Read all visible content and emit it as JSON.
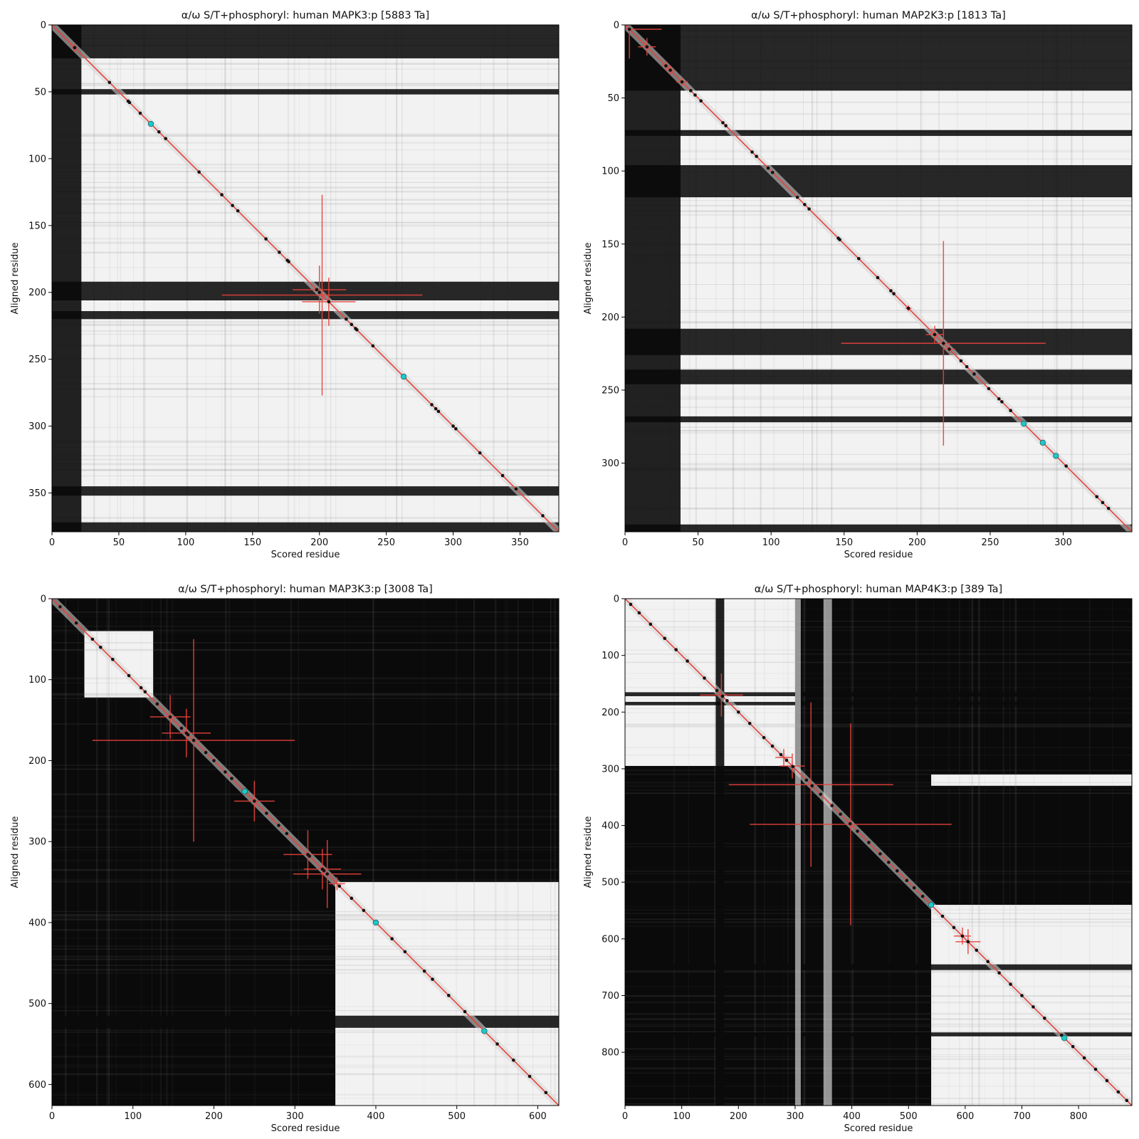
{
  "figure": {
    "background": "#ffffff"
  },
  "colors": {
    "diagonal": "#e8413a",
    "errorbar": "#e8413a",
    "marker": "#111111",
    "highlight": "#1ec8c8",
    "heat_dark": "#0a0a0a",
    "heat_light": "#f2f2f2"
  },
  "chart_data": [
    {
      "type": "heatmap",
      "title": "α/ω S/T+phosphoryl: human MAPK3:p [5883 Ta]",
      "xlabel": "Scored residue",
      "ylabel": "Aligned residue",
      "n": 379,
      "xlim": [
        0,
        379
      ],
      "ylim": [
        379,
        0
      ],
      "xticks": [
        0,
        50,
        100,
        150,
        200,
        250,
        300,
        350
      ],
      "yticks": [
        0,
        50,
        100,
        150,
        200,
        250,
        300,
        350
      ],
      "dark_rows": [
        [
          0,
          25
        ],
        [
          48,
          52
        ],
        [
          192,
          206
        ],
        [
          214,
          220
        ],
        [
          345,
          352
        ],
        [
          372,
          379
        ]
      ],
      "dark_cols": [
        [
          0,
          22
        ]
      ],
      "light_cols": [],
      "light_blocks": [],
      "markers": [
        17,
        43,
        57,
        58,
        66,
        74,
        80,
        85,
        110,
        127,
        135,
        139,
        160,
        170,
        176,
        177,
        198,
        200,
        207,
        220,
        224,
        227,
        228,
        240,
        263,
        284,
        287,
        289,
        300,
        302,
        320,
        337,
        347,
        367
      ],
      "highlights": [
        74,
        263
      ],
      "errorbars": [
        {
          "x": 17,
          "y": 17,
          "xerr": 2,
          "yerr": 3
        },
        {
          "x": 202,
          "y": 202,
          "xerr": 75,
          "yerr": 75
        },
        {
          "x": 200,
          "y": 198,
          "xerr": 20,
          "yerr": 18
        },
        {
          "x": 207,
          "y": 207,
          "xerr": 20,
          "yerr": 18
        }
      ]
    },
    {
      "type": "heatmap",
      "title": "α/ω S/T+phosphoryl: human MAP2K3:p [1813 Ta]",
      "xlabel": "Scored residue",
      "ylabel": "Aligned residue",
      "n": 347,
      "xlim": [
        0,
        347
      ],
      "ylim": [
        347,
        0
      ],
      "xticks": [
        0,
        50,
        100,
        150,
        200,
        250,
        300
      ],
      "yticks": [
        0,
        50,
        100,
        150,
        200,
        250,
        300
      ],
      "dark_rows": [
        [
          0,
          45
        ],
        [
          72,
          76
        ],
        [
          96,
          118
        ],
        [
          208,
          226
        ],
        [
          236,
          246
        ],
        [
          268,
          272
        ],
        [
          342,
          347
        ]
      ],
      "dark_cols": [
        [
          0,
          38
        ]
      ],
      "light_cols": [],
      "light_blocks": [],
      "markers": [
        3,
        15,
        28,
        31,
        39,
        45,
        48,
        52,
        67,
        69,
        87,
        90,
        98,
        101,
        118,
        123,
        126,
        146,
        147,
        160,
        173,
        182,
        184,
        194,
        212,
        218,
        222,
        230,
        234,
        239,
        249,
        256,
        258,
        264,
        273,
        286,
        295,
        302,
        323,
        327,
        331
      ],
      "highlights": [
        273,
        286,
        295
      ],
      "errorbars": [
        {
          "x": 3,
          "y": 3,
          "xerr": 22,
          "yerr": 20
        },
        {
          "x": 15,
          "y": 15,
          "xerr": 6,
          "yerr": 6
        },
        {
          "x": 28,
          "y": 28,
          "xerr": 3,
          "yerr": 3
        },
        {
          "x": 31,
          "y": 31,
          "xerr": 3,
          "yerr": 3
        },
        {
          "x": 39,
          "y": 39,
          "xerr": 4,
          "yerr": 3
        },
        {
          "x": 194,
          "y": 194,
          "xerr": 2,
          "yerr": 2
        },
        {
          "x": 212,
          "y": 212,
          "xerr": 6,
          "yerr": 6
        },
        {
          "x": 218,
          "y": 218,
          "xerr": 70,
          "yerr": 70
        },
        {
          "x": 222,
          "y": 222,
          "xerr": 4,
          "yerr": 4
        }
      ]
    },
    {
      "type": "heatmap",
      "title": "α/ω S/T+phosphoryl: human MAP3K3:p [3008 Ta]",
      "xlabel": "Scored residue",
      "ylabel": "Aligned residue",
      "n": 626,
      "xlim": [
        0,
        626
      ],
      "ylim": [
        626,
        0
      ],
      "xticks": [
        0,
        100,
        200,
        300,
        400,
        500,
        600
      ],
      "yticks": [
        0,
        100,
        200,
        300,
        400,
        500,
        600
      ],
      "dark_rows": [
        [
          515,
          530
        ]
      ],
      "dark_cols": [],
      "light_cols": [],
      "light_blocks": [
        [
          40,
          122,
          40,
          125
        ],
        [
          350,
          626,
          350,
          626
        ]
      ],
      "markers": [
        10,
        30,
        50,
        60,
        75,
        95,
        110,
        115,
        130,
        146,
        160,
        166,
        168,
        175,
        190,
        200,
        214,
        222,
        238,
        250,
        265,
        280,
        290,
        316,
        318,
        334,
        336,
        340,
        355,
        370,
        385,
        400,
        420,
        436,
        460,
        470,
        490,
        510,
        534,
        550,
        570,
        590,
        610
      ],
      "highlights": [
        238,
        400,
        534
      ],
      "errorbars": [
        {
          "x": 146,
          "y": 146,
          "xerr": 25,
          "yerr": 27
        },
        {
          "x": 166,
          "y": 166,
          "xerr": 30,
          "yerr": 30
        },
        {
          "x": 175,
          "y": 175,
          "xerr": 125,
          "yerr": 125
        },
        {
          "x": 250,
          "y": 250,
          "xerr": 25,
          "yerr": 25
        },
        {
          "x": 316,
          "y": 316,
          "xerr": 30,
          "yerr": 30
        },
        {
          "x": 334,
          "y": 334,
          "xerr": 23,
          "yerr": 25
        },
        {
          "x": 340,
          "y": 340,
          "xerr": 42,
          "yerr": 42
        },
        {
          "x": 352,
          "y": 352,
          "xerr": 10,
          "yerr": 8
        }
      ]
    },
    {
      "type": "heatmap",
      "title": "α/ω S/T+phosphoryl: human MAP4K3:p [389 Ta]",
      "xlabel": "Scored residue",
      "ylabel": "Aligned residue",
      "n": 894,
      "xlim": [
        0,
        894
      ],
      "ylim": [
        894,
        0
      ],
      "xticks": [
        0,
        100,
        200,
        300,
        400,
        500,
        600,
        700,
        800
      ],
      "yticks": [
        0,
        100,
        200,
        300,
        400,
        500,
        600,
        700,
        800
      ],
      "dark_rows": [
        [
          165,
          172
        ],
        [
          182,
          188
        ],
        [
          645,
          655
        ],
        [
          765,
          772
        ]
      ],
      "dark_cols": [
        [
          160,
          175
        ]
      ],
      "light_cols": [
        [
          300,
          310
        ],
        [
          350,
          365
        ]
      ],
      "light_blocks": [
        [
          0,
          295,
          0,
          300
        ],
        [
          540,
          894,
          540,
          894
        ],
        [
          310,
          330,
          540,
          894
        ]
      ],
      "markers": [
        10,
        25,
        45,
        70,
        90,
        110,
        140,
        162,
        172,
        180,
        200,
        220,
        245,
        260,
        275,
        285,
        296,
        320,
        330,
        345,
        365,
        380,
        397,
        410,
        430,
        450,
        465,
        480,
        497,
        510,
        525,
        540,
        560,
        580,
        595,
        605,
        620,
        640,
        660,
        680,
        700,
        720,
        740,
        770,
        790,
        810,
        830,
        850,
        870,
        885
      ],
      "highlights": [
        540,
        775
      ],
      "errorbars": [
        {
          "x": 170,
          "y": 170,
          "xerr": 38,
          "yerr": 38
        },
        {
          "x": 280,
          "y": 280,
          "xerr": 15,
          "yerr": 15
        },
        {
          "x": 295,
          "y": 295,
          "xerr": 22,
          "yerr": 22
        },
        {
          "x": 328,
          "y": 328,
          "xerr": 145,
          "yerr": 145
        },
        {
          "x": 398,
          "y": 398,
          "xerr": 178,
          "yerr": 178
        },
        {
          "x": 595,
          "y": 595,
          "xerr": 15,
          "yerr": 15
        },
        {
          "x": 605,
          "y": 605,
          "xerr": 22,
          "yerr": 22
        }
      ]
    }
  ]
}
